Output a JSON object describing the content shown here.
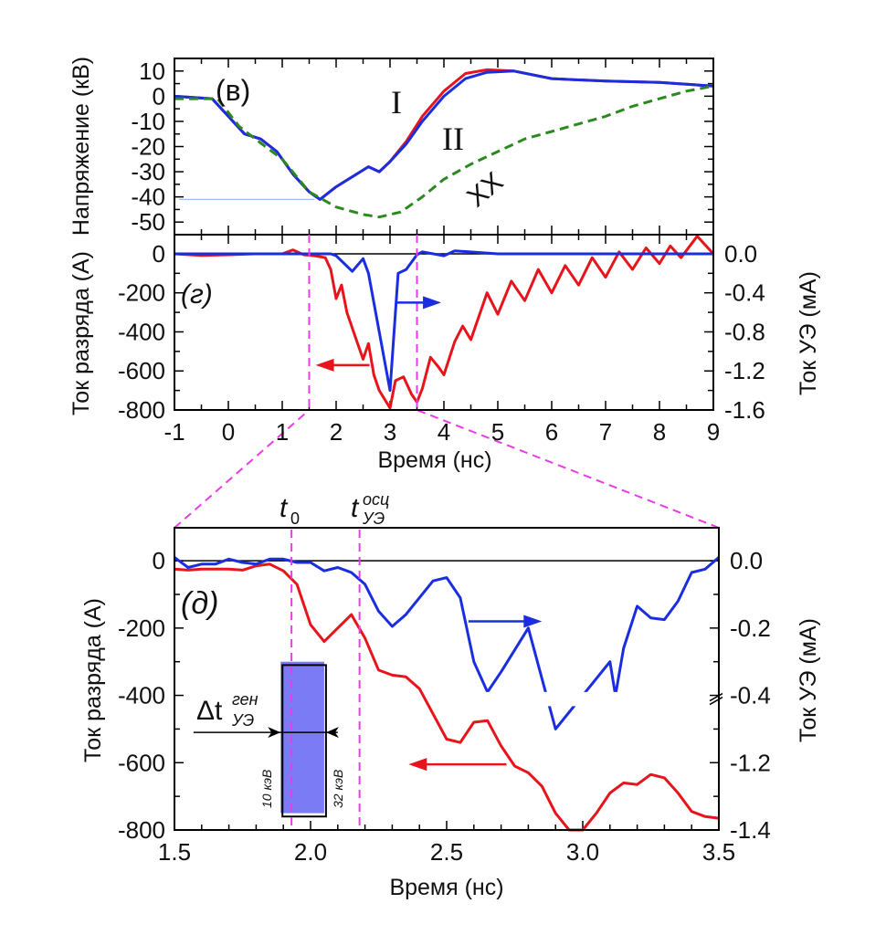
{
  "chart_data": [
    {
      "type": "line",
      "panel_label": "(в)",
      "xlabel": "",
      "ylabel": "Напряжение (кВ)",
      "xlim": [
        -1,
        9
      ],
      "ylim": [
        -55,
        15
      ],
      "yticks": [
        10,
        0,
        -10,
        -20,
        -30,
        -40,
        -50
      ],
      "annotations": [
        "I",
        "II",
        "XX"
      ],
      "series": [
        {
          "name": "I",
          "color": "#e8141b",
          "dashed": false,
          "x": [
            -1,
            -0.3,
            0,
            0.3,
            0.6,
            0.9,
            1.2,
            1.5,
            1.7,
            2.0,
            2.3,
            2.6,
            2.8,
            3.0,
            3.3,
            3.6,
            4.0,
            4.4,
            4.8,
            5.3,
            6,
            7,
            8,
            9
          ],
          "y": [
            0,
            -1,
            -8,
            -15,
            -17,
            -22,
            -31,
            -38,
            -41,
            -36,
            -32,
            -28,
            -30,
            -26,
            -18,
            -8,
            2,
            9,
            10.5,
            10,
            7,
            6,
            5.5,
            4
          ]
        },
        {
          "name": "II",
          "color": "#1a2ee0",
          "dashed": false,
          "x": [
            -1,
            -0.3,
            0,
            0.3,
            0.6,
            0.9,
            1.2,
            1.5,
            1.7,
            2.0,
            2.3,
            2.6,
            2.8,
            3.0,
            3.3,
            3.6,
            4.0,
            4.4,
            4.8,
            5.3,
            6,
            7,
            8,
            9
          ],
          "y": [
            0,
            -1,
            -8,
            -15,
            -17,
            -22,
            -31,
            -38,
            -41,
            -36,
            -32,
            -28,
            -30,
            -26,
            -19,
            -10,
            0,
            7,
            9.5,
            10,
            7,
            6,
            5.5,
            4
          ]
        },
        {
          "name": "XX",
          "color": "#2a8a1e",
          "dashed": true,
          "x": [
            -1,
            -0.2,
            0.2,
            0.5,
            1,
            1.5,
            2,
            2.5,
            2.8,
            3.2,
            3.6,
            4,
            4.5,
            5,
            5.5,
            6,
            6.5,
            7,
            7.5,
            8,
            8.5,
            9
          ],
          "y": [
            -1,
            -1,
            -12,
            -17,
            -25,
            -38,
            -44,
            -47,
            -48,
            -46,
            -40,
            -33,
            -27,
            -22,
            -17,
            -14,
            -11,
            -8,
            -4,
            -1,
            2,
            4
          ]
        }
      ],
      "reference_line_y": -41
    },
    {
      "type": "line",
      "panel_label": "(г)",
      "xlabel": "Время (нс)",
      "ylabel": "Ток разряда (А)",
      "ylabel_right": "Ток УЭ (мА)",
      "xlim": [
        -1,
        9
      ],
      "xticks": [
        -1,
        0,
        1,
        2,
        3,
        4,
        5,
        6,
        7,
        8,
        9
      ],
      "ylim": [
        -800,
        98
      ],
      "yticks": [
        0,
        -200,
        -400,
        -600,
        -800
      ],
      "yticks_right": [
        "0.0",
        "-0.4",
        "-0.8",
        "-1.2",
        "-1.6"
      ],
      "y_right_lim": [
        -1.6,
        0.196
      ],
      "markers_x": [
        1.5,
        3.5
      ],
      "series": [
        {
          "name": "Ток разряда",
          "axis": "left",
          "unit": "A",
          "color": "#e8141b",
          "x": [
            -1,
            -0.5,
            0,
            0.5,
            1,
            1.2,
            1.4,
            1.6,
            1.8,
            1.9,
            2.0,
            2.1,
            2.2,
            2.35,
            2.5,
            2.6,
            2.7,
            2.8,
            3.0,
            3.1,
            3.25,
            3.4,
            3.5,
            3.6,
            3.75,
            3.9,
            4.0,
            4.2,
            4.35,
            4.5,
            4.8,
            5.0,
            5.25,
            5.5,
            5.75,
            6.0,
            6.25,
            6.5,
            6.75,
            7.0,
            7.25,
            7.5,
            7.75,
            8.0,
            8.2,
            8.4,
            8.7,
            9
          ],
          "y": [
            0,
            -8,
            -5,
            0,
            0,
            20,
            -5,
            -10,
            -20,
            -80,
            -230,
            -160,
            -300,
            -420,
            -540,
            -460,
            -620,
            -700,
            -790,
            -650,
            -630,
            -720,
            -760,
            -690,
            -530,
            -580,
            -620,
            -450,
            -370,
            -440,
            -200,
            -310,
            -140,
            -240,
            -80,
            -200,
            -60,
            -160,
            -20,
            -120,
            10,
            -80,
            30,
            -50,
            40,
            -20,
            90,
            0
          ]
        },
        {
          "name": "Ток УЭ",
          "axis": "right",
          "unit": "mA",
          "color": "#1a2ee0",
          "x": [
            -1,
            1.5,
            1.9,
            2.0,
            2.3,
            2.5,
            2.6,
            2.8,
            3.0,
            3.15,
            3.3,
            3.5,
            3.6,
            4,
            4.2,
            5,
            6,
            7,
            8,
            9
          ],
          "y": [
            0,
            0,
            0,
            -0.02,
            -0.18,
            -0.05,
            -0.2,
            -0.8,
            -1.4,
            -0.2,
            -0.16,
            -0.01,
            0.02,
            -0.02,
            0.03,
            0,
            0,
            0,
            0,
            0
          ]
        }
      ]
    },
    {
      "type": "line",
      "panel_label": "(д)",
      "xlabel": "Время (нс)",
      "ylabel": "Ток разряда (А)",
      "ylabel_right": "Ток УЭ (мА)",
      "xlim": [
        1.5,
        3.5
      ],
      "xticks": [
        "1.5",
        "2.0",
        "2.5",
        "3.0",
        "3.5"
      ],
      "ylim": [
        -800,
        98
      ],
      "yticks": [
        0,
        -200,
        -400,
        -600,
        -800
      ],
      "yticks_right": [
        "0.0",
        "-0.2",
        "-0.4",
        "-1.2",
        "-1.4"
      ],
      "right_axis_break": [
        -0.4,
        -1.2
      ],
      "markers": [
        {
          "label": "t",
          "sub": "0",
          "x": 1.93
        },
        {
          "label": "t",
          "sup": "осц",
          "sub": "УЭ",
          "x": 2.18
        }
      ],
      "interval_label": {
        "prefix": "Δt",
        "sup": "ген",
        "sub": "УЭ"
      },
      "interval_x": [
        1.89,
        2.05
      ],
      "energy_labels": [
        "10 кэВ",
        "32 кэВ"
      ],
      "series": [
        {
          "name": "Ток разряда",
          "axis": "left",
          "unit": "A",
          "color": "#e8141b",
          "x": [
            1.5,
            1.55,
            1.6,
            1.7,
            1.75,
            1.8,
            1.85,
            1.9,
            1.95,
            2.0,
            2.05,
            2.15,
            2.2,
            2.25,
            2.3,
            2.35,
            2.4,
            2.5,
            2.55,
            2.6,
            2.65,
            2.7,
            2.75,
            2.8,
            2.85,
            2.9,
            2.95,
            3.0,
            3.05,
            3.1,
            3.15,
            3.2,
            3.25,
            3.3,
            3.35,
            3.4,
            3.45,
            3.5
          ],
          "y": [
            -25,
            -28,
            -25,
            -25,
            -28,
            -15,
            -10,
            -30,
            -70,
            -190,
            -240,
            -160,
            -230,
            -325,
            -340,
            -345,
            -380,
            -530,
            -540,
            -480,
            -475,
            -550,
            -610,
            -630,
            -670,
            -750,
            -800,
            -800,
            -750,
            -690,
            -660,
            -665,
            -635,
            -645,
            -690,
            -745,
            -760,
            -765
          ]
        },
        {
          "name": "Ток УЭ",
          "axis": "right",
          "unit": "mA",
          "color": "#1a2ee0",
          "x": [
            1.5,
            1.55,
            1.6,
            1.65,
            1.7,
            1.75,
            1.8,
            1.85,
            1.9,
            1.95,
            2.0,
            2.05,
            2.1,
            2.15,
            2.2,
            2.25,
            2.3,
            2.35,
            2.45,
            2.5,
            2.55,
            2.6,
            2.65,
            2.7,
            2.8,
            2.9,
            3.0,
            3.1,
            3.12,
            3.15,
            3.2,
            3.25,
            3.3,
            3.35,
            3.4,
            3.45,
            3.5
          ],
          "y": [
            0.01,
            -0.02,
            -0.01,
            -0.01,
            0.005,
            -0.005,
            -0.01,
            0.005,
            0.005,
            -0.005,
            -0.005,
            -0.03,
            -0.02,
            -0.035,
            -0.07,
            -0.15,
            -0.195,
            -0.16,
            -0.06,
            -0.05,
            -0.11,
            -0.3,
            -0.39,
            -0.68,
            -1.2,
            -1.3,
            -1.4,
            -0.8,
            -0.4,
            -0.26,
            -0.135,
            -0.17,
            -0.175,
            -0.12,
            -0.035,
            -0.025,
            0.01
          ]
        }
      ]
    }
  ],
  "colors": {
    "red": "#e8141b",
    "blue": "#1a2ee0",
    "green": "#2a8a1e",
    "magenta": "#e83ce8",
    "box": "#7b7bf5"
  }
}
